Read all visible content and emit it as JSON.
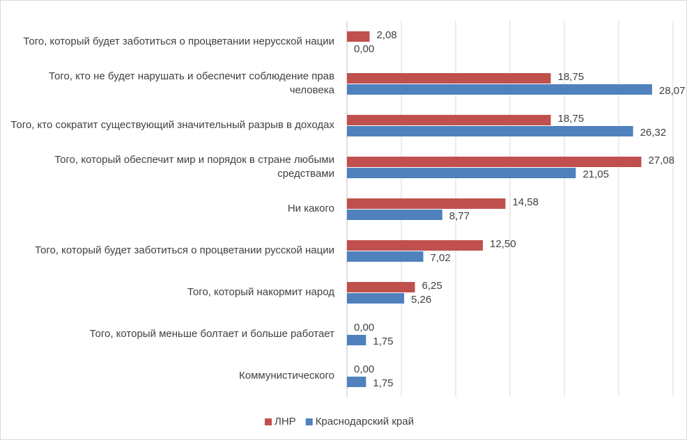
{
  "chart_data": {
    "type": "bar",
    "orientation": "horizontal",
    "categories": [
      "Того, который будет заботиться о процветании нерусской нации",
      "Того, кто не будет нарушать и обеспечит соблюдение прав человека",
      "Того, кто сократит существующий значительный разрыв в доходах",
      "Того, который обеспечит мир и порядок в стране любыми средствами",
      "Ни какого",
      "Того, который будет заботиться о процветании русской нации",
      "Того, который накормит народ",
      "Того, который меньше болтает и больше работает",
      "Коммунистического"
    ],
    "series": [
      {
        "name": "ЛНР",
        "color": "#c0504d",
        "values": [
          2.08,
          18.75,
          18.75,
          27.08,
          14.58,
          12.5,
          6.25,
          0,
          0
        ],
        "value_labels": [
          "2,08",
          "18,75",
          "18,75",
          "27,08",
          "14,58",
          "12,50",
          "6,25",
          "0,00",
          "0,00"
        ]
      },
      {
        "name": "Краснодарский край",
        "color": "#4f81bd",
        "values": [
          0,
          28.07,
          26.32,
          21.05,
          8.77,
          7.02,
          5.26,
          1.75,
          1.75
        ],
        "value_labels": [
          "0,00",
          "28,07",
          "26,32",
          "21,05",
          "8,77",
          "7,02",
          "5,26",
          "1,75",
          "1,75"
        ]
      }
    ],
    "xlim": [
      0,
      30
    ],
    "xticks": [
      0,
      5,
      10,
      15,
      20,
      25,
      30
    ],
    "grid": true,
    "legend": "bottom"
  }
}
